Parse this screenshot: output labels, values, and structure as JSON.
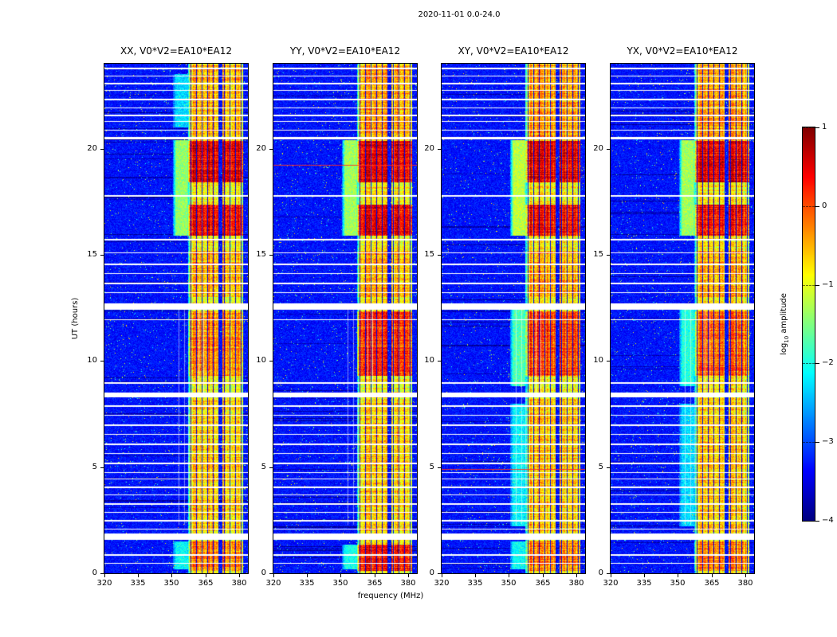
{
  "figure": {
    "title": "2020-11-01 0.0-24.0",
    "xlabel": "frequency (MHz)",
    "ylabel": "UT (hours)"
  },
  "chart_data": {
    "type": "heatmap",
    "description": "Dynamic spectra (UT time vs frequency) of log10 amplitude for four polarization products of baseline V0*V2=EA10*EA12, jet colormap. Mostly low-level blue noise with a strong RFI band near 357.5-381.8 MHz, bright red bursts around 15.9-17.4 and 18.4-20.4 UT, cyan-green enhancement near 350-358 MHz, and many horizontal white data-gap lines.",
    "x": {
      "label": "frequency (MHz)",
      "range": [
        320,
        384
      ],
      "ticks": [
        320,
        335,
        350,
        365,
        380
      ]
    },
    "y": {
      "label": "UT (hours)",
      "range": [
        0,
        24
      ],
      "ticks": [
        0,
        5,
        10,
        15,
        20
      ]
    },
    "colorbar": {
      "label_prefix": "log",
      "label_sub": "10",
      "label_suffix": " amplitude",
      "range": [
        -4,
        1
      ],
      "ticks": [
        1,
        0,
        -1,
        -2,
        -3,
        -4
      ],
      "colormap": "jet"
    },
    "panels": [
      {
        "id": "XX",
        "title": "XX, V0*V2=EA10*EA12",
        "seed": 11,
        "bright_intervals": [
          [
            0.1,
            1.5,
            0.55
          ],
          [
            2.0,
            8.2,
            0.2
          ],
          [
            9.3,
            12.35,
            0.55
          ],
          [
            13.0,
            15.2,
            0.35
          ],
          [
            15.9,
            17.35,
            1.25
          ],
          [
            18.4,
            20.35,
            1.35
          ],
          [
            20.4,
            23.95,
            0.35
          ]
        ],
        "cyan_intervals": [
          [
            15.9,
            20.4,
            1.0
          ],
          [
            0.2,
            1.5,
            0.5
          ],
          [
            21.0,
            23.5,
            0.35
          ]
        ],
        "red_lines": []
      },
      {
        "id": "YY",
        "title": "YY, V0*V2=EA10*EA12",
        "seed": 22,
        "bright_intervals": [
          [
            0.1,
            1.35,
            1.15
          ],
          [
            2.0,
            8.2,
            0.2
          ],
          [
            9.3,
            12.35,
            1.0
          ],
          [
            13.0,
            15.2,
            0.35
          ],
          [
            15.9,
            17.35,
            1.3
          ],
          [
            18.4,
            20.35,
            1.35
          ],
          [
            20.4,
            23.95,
            0.45
          ]
        ],
        "cyan_intervals": [
          [
            15.9,
            20.4,
            1.05
          ],
          [
            0.2,
            1.35,
            0.55
          ]
        ],
        "red_lines": [
          19.22
        ]
      },
      {
        "id": "XY",
        "title": "XY, V0*V2=EA10*EA12",
        "seed": 33,
        "bright_intervals": [
          [
            0.1,
            1.5,
            0.6
          ],
          [
            2.0,
            8.2,
            0.25
          ],
          [
            9.3,
            12.35,
            0.9
          ],
          [
            13.0,
            15.2,
            0.4
          ],
          [
            15.9,
            17.35,
            1.2
          ],
          [
            18.4,
            20.35,
            1.3
          ],
          [
            20.4,
            23.95,
            0.45
          ]
        ],
        "cyan_intervals": [
          [
            15.9,
            20.4,
            1.15
          ],
          [
            8.8,
            12.45,
            0.75
          ],
          [
            2.2,
            8.0,
            0.45
          ],
          [
            0.2,
            1.5,
            0.5
          ]
        ],
        "red_lines": [
          4.9
        ]
      },
      {
        "id": "YX",
        "title": "YX, V0*V2=EA10*EA12",
        "seed": 44,
        "bright_intervals": [
          [
            0.1,
            1.5,
            0.55
          ],
          [
            2.0,
            8.2,
            0.2
          ],
          [
            9.3,
            12.35,
            0.7
          ],
          [
            13.0,
            15.2,
            0.35
          ],
          [
            15.9,
            17.35,
            1.15
          ],
          [
            18.4,
            20.35,
            1.3
          ],
          [
            20.4,
            23.95,
            0.4
          ]
        ],
        "cyan_intervals": [
          [
            15.9,
            20.4,
            1.05
          ],
          [
            8.8,
            12.45,
            0.6
          ],
          [
            2.2,
            8.0,
            0.35
          ]
        ],
        "red_lines": []
      }
    ],
    "rfi_band": {
      "f0": 357.5,
      "f1": 381.8,
      "base_level": -0.85,
      "separator_every": 7,
      "notch": [
        371.3,
        372.7
      ]
    },
    "cyan_band": {
      "f0": 350.5,
      "f1": 358.4
    },
    "gap_lines": [
      [
        23.8,
        2
      ],
      [
        23.45,
        1
      ],
      [
        23.1,
        2
      ],
      [
        22.75,
        1
      ],
      [
        22.35,
        2
      ],
      [
        21.95,
        1
      ],
      [
        21.6,
        2
      ],
      [
        21.3,
        1
      ],
      [
        20.9,
        1
      ],
      [
        20.55,
        3
      ],
      [
        17.8,
        2
      ],
      [
        15.75,
        2
      ],
      [
        15.1,
        1
      ],
      [
        14.6,
        2
      ],
      [
        14.15,
        1
      ],
      [
        13.7,
        2
      ],
      [
        13.25,
        1
      ],
      [
        11.95,
        1
      ],
      [
        9.0,
        2
      ],
      [
        7.9,
        2
      ],
      [
        7.45,
        1
      ],
      [
        7.0,
        2
      ],
      [
        6.55,
        1
      ],
      [
        6.1,
        2
      ],
      [
        5.65,
        1
      ],
      [
        5.2,
        2
      ],
      [
        4.75,
        1
      ],
      [
        4.45,
        1
      ],
      [
        4.1,
        2
      ],
      [
        3.7,
        1
      ],
      [
        3.3,
        2
      ],
      [
        2.9,
        1
      ],
      [
        2.5,
        2
      ],
      [
        2.1,
        1
      ],
      [
        0.9,
        2
      ],
      [
        0.5,
        1
      ]
    ],
    "thick_gaps": [
      [
        12.42,
        12.72
      ],
      [
        8.28,
        8.52
      ],
      [
        1.58,
        1.86
      ]
    ],
    "vertical_lines": [
      [
        352.9,
        2.3,
        12.42,
        0.5
      ],
      [
        355.4,
        2.3,
        12.42,
        0.45
      ],
      [
        361.9,
        8.52,
        12.42,
        0.6
      ],
      [
        364.0,
        8.52,
        12.42,
        0.55
      ],
      [
        357.2,
        4.0,
        8.28,
        0.35
      ]
    ]
  }
}
